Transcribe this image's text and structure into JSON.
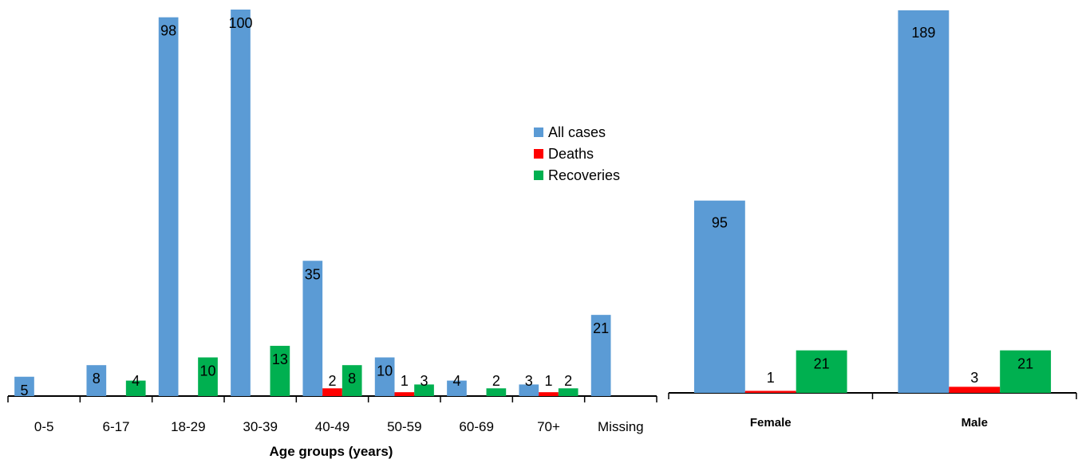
{
  "colors": {
    "all_cases": "#5B9BD5",
    "deaths": "#FF0000",
    "recoveries": "#00B050",
    "axis": "#000000"
  },
  "legend": {
    "items": [
      {
        "label": "All cases",
        "color": "#5B9BD5"
      },
      {
        "label": "Deaths",
        "color": "#FF0000"
      },
      {
        "label": "Recoveries",
        "color": "#00B050"
      }
    ]
  },
  "chart_data": [
    {
      "type": "bar",
      "title": "",
      "xlabel": "Age groups (years)",
      "ylabel": "",
      "categories": [
        "0-5",
        "6-17",
        "18-29",
        "30-39",
        "40-49",
        "50-59",
        "60-69",
        "70+",
        "Missing"
      ],
      "ylim": [
        0,
        100
      ],
      "grid": false,
      "legend_position": "right",
      "series": [
        {
          "name": "All cases",
          "values": [
            5,
            8,
            98,
            100,
            35,
            10,
            4,
            3,
            21
          ]
        },
        {
          "name": "Deaths",
          "values": [
            null,
            null,
            null,
            null,
            2,
            1,
            null,
            1,
            null
          ]
        },
        {
          "name": "Recoveries",
          "values": [
            null,
            4,
            10,
            13,
            8,
            3,
            2,
            2,
            null
          ]
        }
      ]
    },
    {
      "type": "bar",
      "title": "",
      "xlabel": "",
      "ylabel": "",
      "categories": [
        "Female",
        "Male"
      ],
      "ylim": [
        0,
        189
      ],
      "grid": false,
      "series": [
        {
          "name": "All cases",
          "values": [
            95,
            189
          ]
        },
        {
          "name": "Deaths",
          "values": [
            1,
            3
          ]
        },
        {
          "name": "Recoveries",
          "values": [
            21,
            21
          ]
        }
      ]
    }
  ]
}
